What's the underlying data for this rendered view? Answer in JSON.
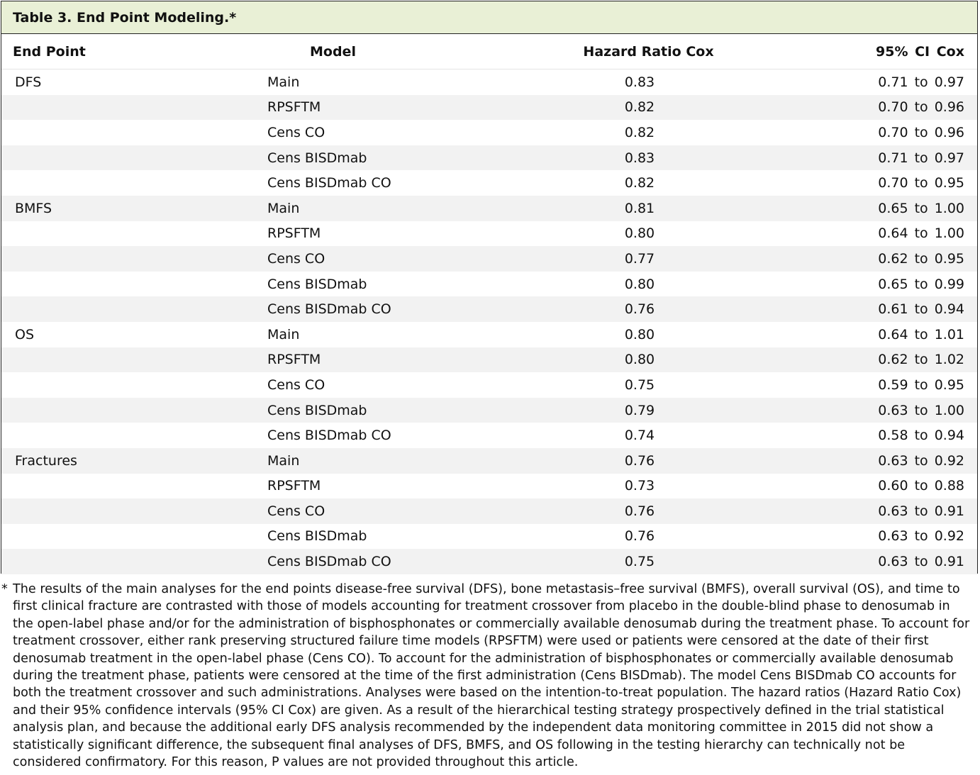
{
  "title": "Table 3. End Point Modeling.*",
  "headers": [
    "End Point",
    "Model",
    "Hazard Ratio Cox",
    "95% CI Cox"
  ],
  "rows": [
    {
      "endpoint": "DFS",
      "model": "Main",
      "hr": "0.83",
      "ci": "0.71 to 0.97"
    },
    {
      "endpoint": "",
      "model": "RPSFTM",
      "hr": "0.82",
      "ci": "0.70 to 0.96"
    },
    {
      "endpoint": "",
      "model": "Cens CO",
      "hr": "0.82",
      "ci": "0.70 to 0.96"
    },
    {
      "endpoint": "",
      "model": "Cens BISDmab",
      "hr": "0.83",
      "ci": "0.71 to 0.97"
    },
    {
      "endpoint": "",
      "model": "Cens BISDmab CO",
      "hr": "0.82",
      "ci": "0.70 to 0.95"
    },
    {
      "endpoint": "BMFS",
      "model": "Main",
      "hr": "0.81",
      "ci": "0.65 to 1.00"
    },
    {
      "endpoint": "",
      "model": "RPSFTM",
      "hr": "0.80",
      "ci": "0.64 to 1.00"
    },
    {
      "endpoint": "",
      "model": "Cens CO",
      "hr": "0.77",
      "ci": "0.62 to 0.95"
    },
    {
      "endpoint": "",
      "model": "Cens BISDmab",
      "hr": "0.80",
      "ci": "0.65 to 0.99"
    },
    {
      "endpoint": "",
      "model": "Cens BISDmab CO",
      "hr": "0.76",
      "ci": "0.61 to 0.94"
    },
    {
      "endpoint": "OS",
      "model": "Main",
      "hr": "0.80",
      "ci": "0.64 to 1.01"
    },
    {
      "endpoint": "",
      "model": "RPSFTM",
      "hr": "0.80",
      "ci": "0.62 to 1.02"
    },
    {
      "endpoint": "",
      "model": "Cens CO",
      "hr": "0.75",
      "ci": "0.59 to 0.95"
    },
    {
      "endpoint": "",
      "model": "Cens BISDmab",
      "hr": "0.79",
      "ci": "0.63 to 1.00"
    },
    {
      "endpoint": "",
      "model": "Cens BISDmab CO",
      "hr": "0.74",
      "ci": "0.58 to 0.94"
    },
    {
      "endpoint": "Fractures",
      "model": "Main",
      "hr": "0.76",
      "ci": "0.63 to 0.92"
    },
    {
      "endpoint": "",
      "model": "RPSFTM",
      "hr": "0.73",
      "ci": "0.60 to 0.88"
    },
    {
      "endpoint": "",
      "model": "Cens CO",
      "hr": "0.76",
      "ci": "0.63 to 0.91"
    },
    {
      "endpoint": "",
      "model": "Cens BISDmab",
      "hr": "0.76",
      "ci": "0.63 to 0.92"
    },
    {
      "endpoint": "",
      "model": "Cens BISDmab CO",
      "hr": "0.75",
      "ci": "0.63 to 0.91"
    }
  ],
  "footnote": {
    "mark": "*",
    "text": "The results of the main analyses for the end points disease-free survival (DFS), bone metastasis–free survival (BMFS), overall survival (OS), and time to first clinical fracture are contrasted with those of models accounting for treatment crossover from placebo in the double-blind phase to denosumab in the open-label phase and/or for the administration of bisphosphonates or commercially available denosumab during the treatment phase. To account for treatment crossover, either rank preserving structured failure time models (RPSFTM) were used or patients were censored at the date of their first denosumab treatment in the open-label phase (Cens CO). To account for the administration of bisphosphonates or commercially available denosumab during the treatment phase, patients were censored at the time of the first administration (Cens BISDmab). The model Cens BISDmab CO accounts for both the treatment crossover and such administrations. Analyses were based on the intention-to-treat population. The hazard ratios (Hazard Ratio Cox) and their 95% confidence intervals (95% CI Cox) are given. As a result of the hierarchical testing strategy prospectively defined in the trial statistical analysis plan, and because the additional early DFS analysis recommended by the independent data monitoring committee in 2015 did not show a statistically significant difference, the subsequent final analyses of DFS, BMFS, and OS following in the testing hierarchy can technically not be considered confirmatory. For this reason, P values are not provided throughout this article."
  },
  "colors": {
    "title_bg": "#e9f0d6",
    "stripe_bg": "#f2f2f2",
    "border": "#222222"
  }
}
